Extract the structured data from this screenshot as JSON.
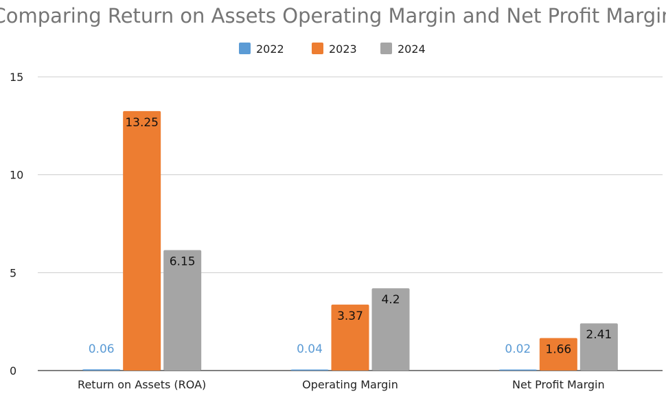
{
  "chart_data": {
    "type": "bar",
    "title": "Comparing Return on Assets Operating Margin and Net Profit Margin",
    "categories": [
      "Return on Assets (ROA)",
      "Operating Margin",
      "Net Profit Margin"
    ],
    "series": [
      {
        "name": "2022",
        "color": "#5b9bd5",
        "values": [
          0.06,
          0.04,
          0.02
        ],
        "labels": [
          "0.06",
          "0.04",
          "0.02"
        ]
      },
      {
        "name": "2023",
        "color": "#ed7d31",
        "values": [
          13.25,
          3.37,
          1.66
        ],
        "labels": [
          "13.25",
          "3.37",
          "1.66"
        ]
      },
      {
        "name": "2024",
        "color": "#a5a5a5",
        "values": [
          6.15,
          4.2,
          2.41
        ],
        "labels": [
          "6.15",
          "4.2",
          "2.41"
        ]
      }
    ],
    "ylim": [
      0,
      15
    ],
    "yticks": [
      "0",
      "5",
      "10",
      "15"
    ],
    "grid": true,
    "legend": "top-center"
  }
}
